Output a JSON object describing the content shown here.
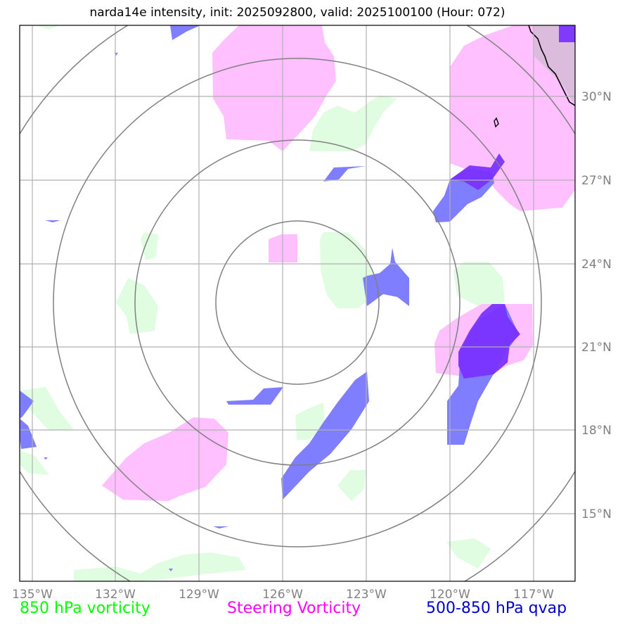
{
  "title": "narda14e intensity, init: 2025092800, valid: 2025100100 (Hour: 072)",
  "lon_ticks": [
    "135°W",
    "132°W",
    "129°W",
    "126°W",
    "123°W",
    "120°W",
    "117°W"
  ],
  "lat_ticks": [
    "30°N",
    "27°N",
    "24°N",
    "21°N",
    "18°N",
    "15°N"
  ],
  "legend": {
    "vort850": {
      "label": "850 hPa vorticity",
      "color": "#00ff00"
    },
    "steering": {
      "label": "Steering Vorticity",
      "color": "#ff00ff"
    },
    "qvap": {
      "label": "500-850 hPa qvap",
      "color": "#0000cc"
    }
  },
  "colors": {
    "green_fill": "#e1fde1",
    "pink_fill": "#ffc0ff",
    "blue_fill": "#7777ff",
    "purple_fill": "#7a33ff",
    "land": "#dcbcdc",
    "rings": "#808080",
    "grid": "#b0b0b0"
  }
}
